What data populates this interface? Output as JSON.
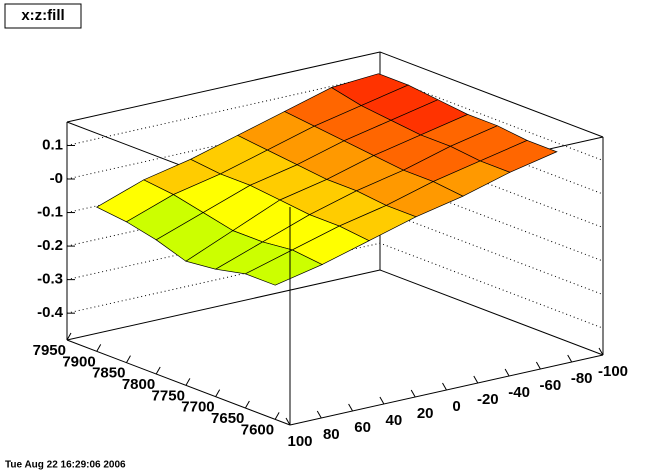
{
  "chart_data": {
    "type": "surface",
    "title": "x:z:fill",
    "timestamp": "Tue Aug 22 16:29:06 2006",
    "x": [
      100,
      70,
      40,
      10,
      -20,
      -50,
      -80
    ],
    "y": [
      7600,
      7650,
      7700,
      7750,
      7800,
      7850,
      7900
    ],
    "z": [
      [
        -0.08,
        -0.05,
        -0.01,
        0.03,
        0.06,
        0.1,
        0.13
      ],
      [
        -0.08,
        -0.04,
        0.0,
        0.03,
        0.07,
        0.1,
        0.13
      ],
      [
        -0.1,
        -0.05,
        0.0,
        0.04,
        0.07,
        0.11,
        0.14
      ],
      [
        -0.11,
        -0.05,
        0.01,
        0.04,
        0.08,
        0.11,
        0.14
      ],
      [
        -0.08,
        -0.03,
        0.02,
        0.05,
        0.09,
        0.12,
        0.15
      ],
      [
        -0.06,
        -0.01,
        0.02,
        0.06,
        0.1,
        0.13,
        0.16
      ],
      [
        -0.05,
        0.0,
        0.03,
        0.07,
        0.11,
        0.15,
        0.16
      ]
    ],
    "xlim": [
      -100,
      100
    ],
    "xticks": [
      100,
      80,
      60,
      40,
      20,
      0,
      -20,
      -40,
      -60,
      -80,
      -100
    ],
    "ylim": [
      7575,
      7950
    ],
    "yticks": [
      7600,
      7650,
      7700,
      7750,
      7800,
      7850,
      7900,
      7950
    ],
    "zlim": [
      -0.48,
      0.17
    ],
    "zticks": [
      0.1,
      {
        "value": 0,
        "label": "-0"
      },
      -0.1,
      -0.2,
      -0.3,
      -0.4
    ],
    "grid": true,
    "palette": [
      "#66ff00",
      "#ccff00",
      "#ffff00",
      "#ffcc00",
      "#ff9900",
      "#ff6600",
      "#ff3300"
    ]
  }
}
